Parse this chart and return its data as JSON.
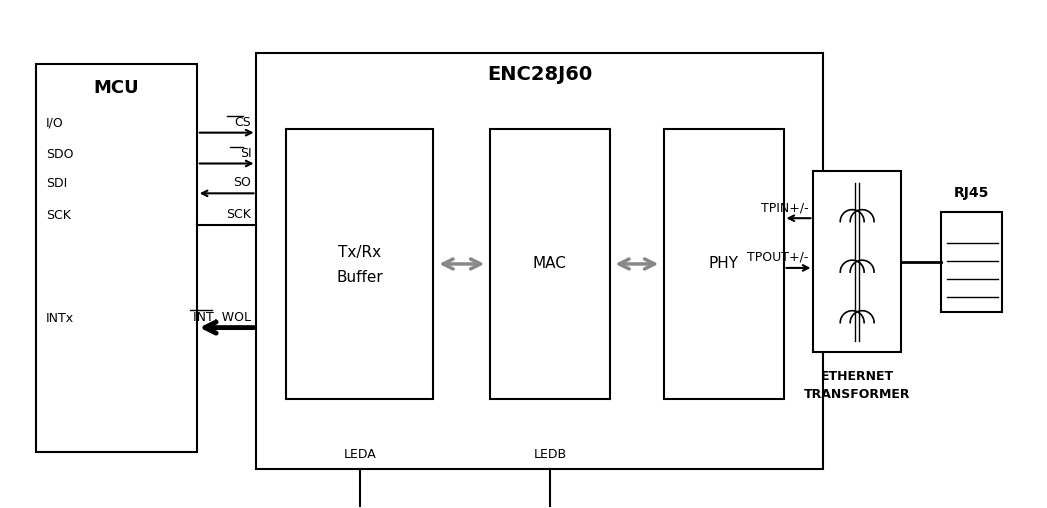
{
  "bg_color": "#ffffff",
  "line_color": "#000000",
  "title_enc": "ENC28J60",
  "title_mcu": "MCU",
  "label_txrx": [
    "Tx/Rx",
    "Buffer"
  ],
  "label_mac": "MAC",
  "label_phy": "PHY",
  "label_eth_transformer": [
    "ETHERNET",
    "TRANSFORMER"
  ],
  "label_rj45": "RJ45",
  "signal_labels_right": [
    "CS",
    "SI",
    "SO",
    "SCK"
  ],
  "signal_labels_left": [
    "I/O",
    "SDO",
    "SDI",
    "SCK"
  ],
  "signal_label_int_right": "INT, WOL",
  "signal_label_int_left": "INTx",
  "label_tpin": "TPIN+/-",
  "label_tpout": "TPOUT+/-",
  "label_leda": "LEDA",
  "label_ledb": "LEDB",
  "figsize": [
    10.47,
    5.08
  ],
  "dpi": 100
}
